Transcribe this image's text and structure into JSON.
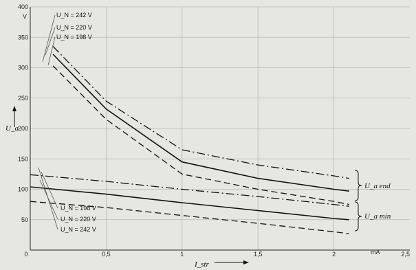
{
  "chart_data": {
    "type": "line",
    "title": "",
    "xlabel": "I_str",
    "ylabel": "U_a",
    "x_unit": "mA",
    "y_unit": "V",
    "xlim": [
      0,
      2.5
    ],
    "ylim": [
      0,
      400
    ],
    "x_ticks": [
      "0",
      "0,5",
      "1",
      "1,5",
      "2",
      "2,5"
    ],
    "y_ticks": [
      "50",
      "100",
      "150",
      "200",
      "250",
      "300",
      "350",
      "400"
    ],
    "grid": true,
    "legend_top": [
      "U_N = 242 V",
      "U_N = 220 V",
      "U_N = 198 V"
    ],
    "legend_bottom": [
      "U_N = 198 V",
      "U_N = 220 V",
      "U_N = 242 V"
    ],
    "brace_labels": [
      "U_a end",
      "U_a min"
    ],
    "series": [
      {
        "group": "U_a end",
        "line_style": "dash-dot",
        "points": [
          [
            0.15,
            335
          ],
          [
            0.5,
            245
          ],
          [
            1.0,
            165
          ],
          [
            1.5,
            140
          ],
          [
            2.0,
            122
          ],
          [
            2.1,
            118
          ]
        ]
      },
      {
        "group": "U_a end",
        "line_style": "solid",
        "points": [
          [
            0.15,
            322
          ],
          [
            0.5,
            232
          ],
          [
            1.0,
            145
          ],
          [
            1.5,
            118
          ],
          [
            2.0,
            100
          ],
          [
            2.1,
            97
          ]
        ]
      },
      {
        "group": "U_a end",
        "line_style": "dashed",
        "points": [
          [
            0.15,
            303
          ],
          [
            0.5,
            215
          ],
          [
            1.0,
            125
          ],
          [
            1.5,
            100
          ],
          [
            2.0,
            80
          ],
          [
            2.1,
            75
          ]
        ]
      },
      {
        "group": "U_a min",
        "line_style": "dash-dot",
        "points": [
          [
            0,
            124
          ],
          [
            0.5,
            113
          ],
          [
            1.0,
            100
          ],
          [
            1.5,
            88
          ],
          [
            2.0,
            75
          ],
          [
            2.1,
            72
          ]
        ]
      },
      {
        "group": "U_a min",
        "line_style": "solid",
        "points": [
          [
            0,
            104
          ],
          [
            0.5,
            92
          ],
          [
            1.0,
            78
          ],
          [
            1.5,
            65
          ],
          [
            2.0,
            52
          ],
          [
            2.1,
            50
          ]
        ]
      },
      {
        "group": "U_a min",
        "line_style": "dashed",
        "points": [
          [
            0,
            80
          ],
          [
            0.5,
            70
          ],
          [
            1.0,
            57
          ],
          [
            1.5,
            44
          ],
          [
            2.0,
            30
          ],
          [
            2.1,
            27
          ]
        ]
      }
    ]
  }
}
